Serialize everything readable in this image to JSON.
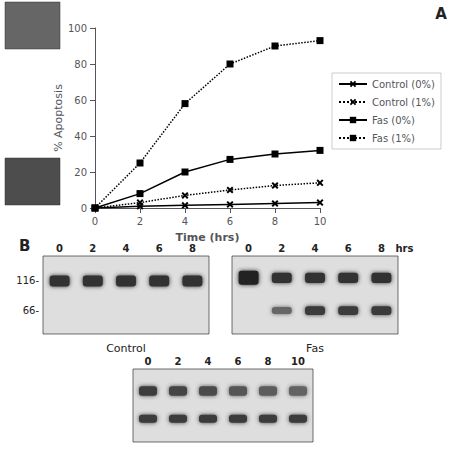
{
  "chart_data": {
    "type": "line",
    "x_label": "Time (hrs)",
    "y_label": "% Apoptosis",
    "xlim": [
      0,
      10
    ],
    "ylim": [
      0,
      100
    ],
    "xticks": [
      0,
      2,
      4,
      6,
      8,
      10
    ],
    "yticks": [
      0,
      20,
      40,
      60,
      80,
      100
    ],
    "grid": false,
    "legend": "right",
    "series": [
      {
        "name": "Control (0%)",
        "color": "#000000",
        "line_style": "solid",
        "marker": "x",
        "x": [
          0,
          2,
          4,
          6,
          8,
          10
        ],
        "values": [
          0,
          1.0,
          1.5,
          2.0,
          2.5,
          3.0
        ]
      },
      {
        "name": "Control (1%)",
        "color": "#000000",
        "line_style": "dotted",
        "marker": "x",
        "x": [
          0,
          2,
          4,
          6,
          8,
          10
        ],
        "values": [
          0,
          3.0,
          7.0,
          10.0,
          12.5,
          14.0
        ]
      },
      {
        "name": "Fas (0%)",
        "color": "#000000",
        "line_style": "solid",
        "marker": "square",
        "x": [
          0,
          2,
          4,
          6,
          8,
          10
        ],
        "values": [
          0,
          8.0,
          20.0,
          27.0,
          30.0,
          32.0
        ]
      },
      {
        "name": "Fas (1%)",
        "color": "#000000",
        "line_style": "dotted",
        "marker": "square",
        "x": [
          0,
          2,
          4,
          6,
          8,
          10
        ],
        "values": [
          0,
          25.0,
          58.0,
          80.0,
          90.0,
          93.0
        ]
      }
    ],
    "annotations": {
      "panel_labels": [
        "A",
        "B"
      ],
      "mw_labels": [
        "116-",
        "66-"
      ],
      "gel_section_labels": [
        "Control",
        "Fas"
      ],
      "gel_time_labels_top": [
        "0",
        "2",
        "4",
        "6",
        "8"
      ],
      "gel_time_labels_bottom": [
        "0",
        "2",
        "4",
        "6",
        "8",
        "10"
      ],
      "hrs_label": "hrs"
    }
  }
}
